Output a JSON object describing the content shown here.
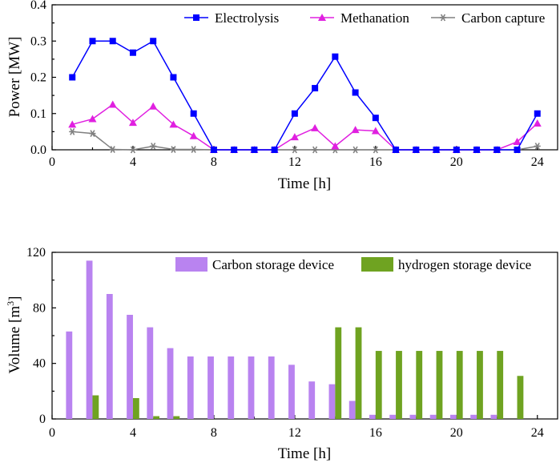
{
  "chart_data": [
    {
      "type": "line",
      "title": "",
      "xlabel": "Time [h]",
      "ylabel": "Power [MW]",
      "xlim": [
        0,
        25
      ],
      "ylim": [
        0,
        0.4
      ],
      "xticks": [
        "0",
        "4",
        "8",
        "12",
        "16",
        "20",
        "24"
      ],
      "yticks": [
        "0.0",
        "0.1",
        "0.2",
        "0.3",
        "0.4"
      ],
      "legend_position": "top-right",
      "x": [
        1,
        2,
        3,
        4,
        5,
        6,
        7,
        8,
        9,
        10,
        11,
        12,
        13,
        14,
        15,
        16,
        17,
        18,
        19,
        20,
        21,
        22,
        23,
        24
      ],
      "series": [
        {
          "name": "Electrolysis",
          "color": "#0000ff",
          "marker": "square",
          "values": [
            0.2,
            0.3,
            0.3,
            0.268,
            0.3,
            0.2,
            0.1,
            0,
            0,
            0,
            0,
            0.1,
            0.17,
            0.257,
            0.158,
            0.088,
            0,
            0,
            0,
            0,
            0,
            0,
            0,
            0.1
          ]
        },
        {
          "name": "Methanation",
          "color": "#e020e0",
          "marker": "triangle",
          "values": [
            0.07,
            0.085,
            0.125,
            0.075,
            0.12,
            0.07,
            0.038,
            0,
            0,
            0,
            0,
            0.035,
            0.06,
            0.01,
            0.055,
            0.052,
            0,
            0,
            0,
            0,
            0,
            0,
            0.022,
            0.073
          ]
        },
        {
          "name": "Carbon capture",
          "color": "#808080",
          "marker": "asterisk",
          "values": [
            0.05,
            0.045,
            0.001,
            0,
            0.01,
            0.001,
            0.001,
            0,
            0,
            0,
            0,
            0,
            0,
            0,
            0,
            0,
            0,
            0,
            0,
            0,
            0,
            0,
            0,
            0.01
          ]
        }
      ]
    },
    {
      "type": "bar",
      "title": "",
      "xlabel": "Time [h]",
      "ylabel": "Volume [m",
      "ylabel_sup": "3",
      "ylabel_suffix": "]",
      "xlim": [
        0,
        25
      ],
      "ylim": [
        0,
        120
      ],
      "xticks": [
        "0",
        "4",
        "8",
        "12",
        "16",
        "20",
        "24"
      ],
      "yticks": [
        "0",
        "40",
        "80",
        "120"
      ],
      "legend_position": "top-right",
      "x": [
        1,
        2,
        3,
        4,
        5,
        6,
        7,
        8,
        9,
        10,
        11,
        12,
        13,
        14,
        15,
        16,
        17,
        18,
        19,
        20,
        21,
        22,
        23
      ],
      "series": [
        {
          "name": "Carbon storage device",
          "color": "#b983f0",
          "values": [
            63,
            114,
            90,
            75,
            66,
            51,
            45,
            45,
            45,
            45,
            45,
            39,
            27,
            25,
            13,
            3,
            3,
            3,
            3,
            3,
            3,
            3,
            0
          ]
        },
        {
          "name": "hydrogen storage device",
          "color": "#6fa321",
          "values": [
            0,
            17,
            0,
            15,
            2,
            2,
            0,
            0,
            0,
            0,
            0,
            0,
            0,
            66,
            66,
            49,
            49,
            49,
            49,
            49,
            49,
            49,
            31
          ]
        }
      ]
    }
  ]
}
